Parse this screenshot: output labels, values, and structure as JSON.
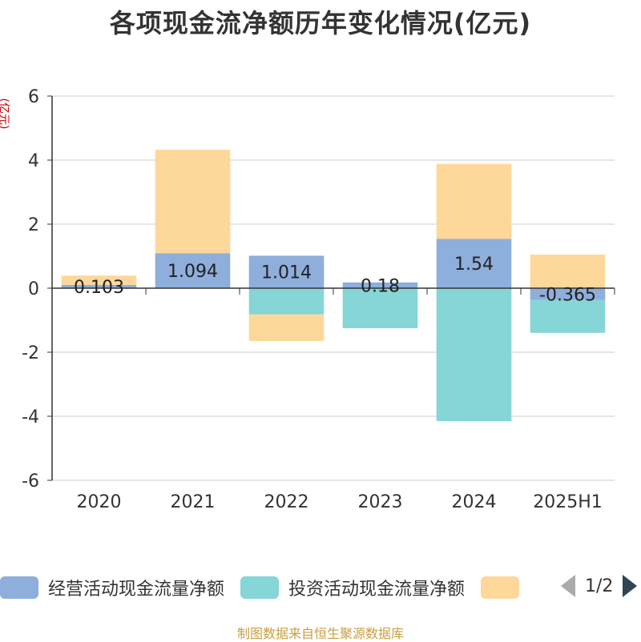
{
  "title": "各项现金流净额历年变化情况(亿元)",
  "unit": "(亿元)",
  "source": "制图数据来自恒生聚源数据库",
  "legend": {
    "items": [
      {
        "label": "经营活动现金流量净额",
        "color": "#8eaedb"
      },
      {
        "label": "投资活动现金流量净额",
        "color": "#86d5d7"
      },
      {
        "label": "",
        "color": "#fdd89a"
      }
    ],
    "page": "1/2"
  },
  "chart_data": {
    "type": "bar",
    "stacked": true,
    "categories": [
      "2020",
      "2021",
      "2022",
      "2023",
      "2024",
      "2025H1"
    ],
    "ylim": [
      -6,
      6
    ],
    "yticks": [
      6,
      4,
      2,
      0,
      -2,
      -4,
      -6
    ],
    "grid": true,
    "series": [
      {
        "name": "经营活动现金流量净额",
        "color": "#8eaedb",
        "values": [
          0.103,
          1.094,
          1.014,
          0.18,
          1.54,
          -0.365
        ],
        "labels": [
          "0.103",
          "1.094",
          "1.014",
          "0.18",
          "1.54",
          "-0.365"
        ]
      },
      {
        "name": "投资活动现金流量净额",
        "color": "#86d5d7",
        "values": [
          0,
          0,
          -0.82,
          -1.25,
          -4.15,
          -1.03
        ]
      },
      {
        "name": "",
        "color": "#fdd89a",
        "values": [
          0.29,
          3.23,
          -0.83,
          0,
          2.34,
          1.05
        ]
      }
    ]
  }
}
